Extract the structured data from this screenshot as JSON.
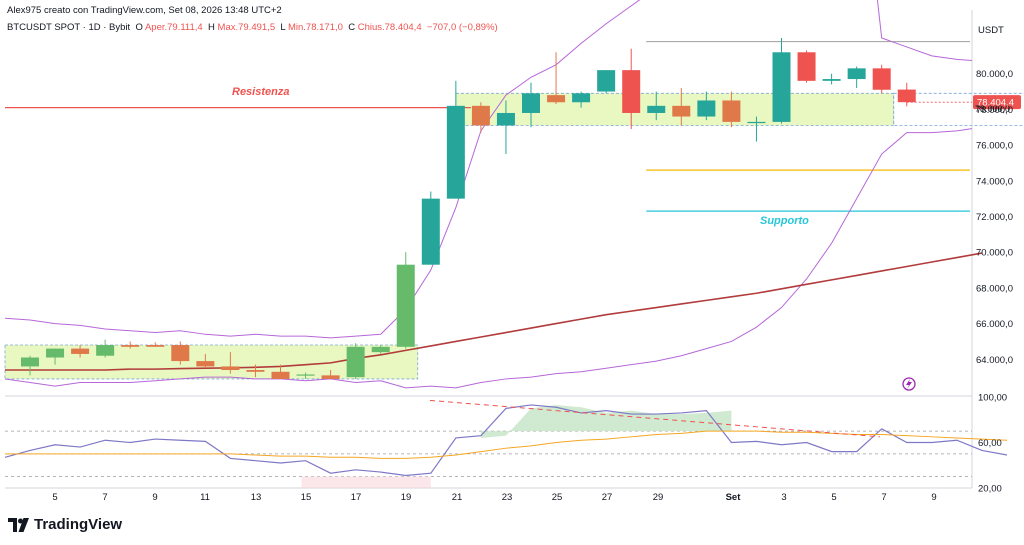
{
  "header": {
    "author_line": "Alex975 creato con TradingView.com, Set 08, 2026 13:48 UTC+2",
    "symbol_line": "BTCUSDT SPOT · 1D · Bybit",
    "o_label": "O",
    "o_value": "Aper.79.111,4",
    "h_label": "H",
    "h_value": "Max.79.491,5",
    "l_label": "L",
    "l_value": "Min.78.171,0",
    "c_label": "C",
    "c_value": "Chius.78.404,4",
    "change": "−707,0 (−0,89%)"
  },
  "footer": {
    "brand": "TradingView"
  },
  "colors": {
    "up": "#26a69a",
    "up_light": "#66bb6a",
    "down": "#ef5350",
    "down_light": "#e0794a",
    "resistance": "#ef5350",
    "support": "#26c6da",
    "yellow_line": "#f5b800",
    "ma": "#b23b3b",
    "bollinger": "#b667d8",
    "range_box": "#e8f8c0",
    "rsi": "#7e78c6",
    "rsi_ma": "#f5a623",
    "rsi_div": "#ef5350"
  },
  "chart_data": [
    {
      "type": "candlestick",
      "title": "BTCUSDT SPOT · 1D · Bybit",
      "currency": "USDT",
      "ylim": [
        62000,
        82000
      ],
      "y_ticks": [
        "80.000,0",
        "78.000,0",
        "76.000,0",
        "74.000,0",
        "72.000,0",
        "70.000,0",
        "68.000,0",
        "66.000,0",
        "64.000,0"
      ],
      "y_tick_values": [
        80000,
        78000,
        76000,
        74000,
        72000,
        70000,
        68000,
        66000,
        64000
      ],
      "x_ticks": [
        "5",
        "7",
        "9",
        "11",
        "13",
        "15",
        "17",
        "19",
        "21",
        "23",
        "25",
        "27",
        "29",
        "Set",
        "3",
        "5",
        "7",
        "9"
      ],
      "last_price": "78.404,4",
      "last_price_value": 78404.4,
      "candles": [
        {
          "o": 63600,
          "h": 64200,
          "l": 63100,
          "c": 64100
        },
        {
          "o": 64100,
          "h": 64600,
          "l": 63700,
          "c": 64600
        },
        {
          "o": 64600,
          "h": 64800,
          "l": 64100,
          "c": 64300
        },
        {
          "o": 64200,
          "h": 65100,
          "l": 64100,
          "c": 64800
        },
        {
          "o": 64800,
          "h": 65000,
          "l": 64600,
          "c": 64700
        },
        {
          "o": 64800,
          "h": 64950,
          "l": 64700,
          "c": 64700
        },
        {
          "o": 64800,
          "h": 65000,
          "l": 63700,
          "c": 63900
        },
        {
          "o": 63900,
          "h": 64300,
          "l": 63500,
          "c": 63600
        },
        {
          "o": 63600,
          "h": 64400,
          "l": 63200,
          "c": 63400
        },
        {
          "o": 63400,
          "h": 63700,
          "l": 63000,
          "c": 63300
        },
        {
          "o": 63300,
          "h": 63700,
          "l": 62900,
          "c": 62900
        },
        {
          "o": 63100,
          "h": 63250,
          "l": 62900,
          "c": 63150
        },
        {
          "o": 63100,
          "h": 63400,
          "l": 62900,
          "c": 62900
        },
        {
          "o": 63000,
          "h": 64900,
          "l": 62900,
          "c": 64700
        },
        {
          "o": 64400,
          "h": 64800,
          "l": 64300,
          "c": 64700
        },
        {
          "o": 64700,
          "h": 70000,
          "l": 64600,
          "c": 69300
        },
        {
          "o": 69300,
          "h": 73400,
          "l": 69300,
          "c": 73000
        },
        {
          "o": 73000,
          "h": 79600,
          "l": 73000,
          "c": 78200
        },
        {
          "o": 78200,
          "h": 78400,
          "l": 76700,
          "c": 77100
        },
        {
          "o": 77100,
          "h": 78500,
          "l": 75500,
          "c": 77800
        },
        {
          "o": 77800,
          "h": 79500,
          "l": 77000,
          "c": 78900
        },
        {
          "o": 78800,
          "h": 81200,
          "l": 78300,
          "c": 78400
        },
        {
          "o": 78400,
          "h": 79000,
          "l": 78100,
          "c": 78900
        },
        {
          "o": 79000,
          "h": 80200,
          "l": 78900,
          "c": 80200
        },
        {
          "o": 80200,
          "h": 81400,
          "l": 76900,
          "c": 77800
        },
        {
          "o": 77800,
          "h": 79000,
          "l": 77400,
          "c": 78200
        },
        {
          "o": 78200,
          "h": 79200,
          "l": 77100,
          "c": 77600
        },
        {
          "o": 77600,
          "h": 79000,
          "l": 77400,
          "c": 78500
        },
        {
          "o": 78500,
          "h": 79000,
          "l": 77000,
          "c": 77300
        },
        {
          "o": 77300,
          "h": 77600,
          "l": 76200,
          "c": 77300
        },
        {
          "o": 77300,
          "h": 82000,
          "l": 77200,
          "c": 81200
        },
        {
          "o": 81200,
          "h": 81300,
          "l": 79500,
          "c": 79600
        },
        {
          "o": 79600,
          "h": 80000,
          "l": 79400,
          "c": 79700
        },
        {
          "o": 79700,
          "h": 80400,
          "l": 79200,
          "c": 80300
        },
        {
          "o": 80300,
          "h": 80500,
          "l": 78900,
          "c": 79100
        },
        {
          "o": 79111.4,
          "h": 79491.5,
          "l": 78171.0,
          "c": 78404.4
        }
      ],
      "moving_average": [
        63400,
        63400,
        63400,
        63400,
        63400,
        63450,
        63450,
        63480,
        63500,
        63520,
        63550,
        63600,
        63700,
        63800,
        64050,
        64250,
        64500,
        64750,
        65000,
        65250,
        65500,
        65750,
        66000,
        66250,
        66500,
        66700,
        66900,
        67100,
        67300,
        67500,
        67700,
        67950,
        68200,
        68450,
        68700,
        68950,
        69200,
        69450,
        69700,
        69950
      ],
      "bollinger_upper": [
        66300,
        66200,
        66000,
        65900,
        65700,
        65600,
        65500,
        65600,
        65400,
        65300,
        65400,
        65300,
        65300,
        65200,
        65300,
        65400,
        66800,
        69000,
        72500,
        76800,
        78800,
        79800,
        80500,
        81700,
        82800,
        83800,
        84800,
        86000,
        87200,
        88400,
        89800,
        91200,
        92400,
        93700,
        94500,
        82000,
        81500,
        81000,
        80800,
        80700,
        80800,
        80800
      ],
      "bollinger_lower": [
        62900,
        62700,
        62500,
        62700,
        62700,
        62700,
        62800,
        62900,
        63000,
        63000,
        62900,
        62900,
        62800,
        62900,
        62700,
        62800,
        62400,
        62500,
        62400,
        62700,
        62900,
        63000,
        63200,
        63300,
        63500,
        63700,
        63900,
        64200,
        64600,
        65000,
        65800,
        66900,
        68500,
        70500,
        73000,
        75500,
        76700,
        76700,
        76800,
        77000,
        76800,
        76800
      ],
      "zones": [
        {
          "name": "accumulation",
          "from_index": 0,
          "to_index": 15,
          "low": 62900,
          "high": 64800
        },
        {
          "name": "range",
          "from_index": 18,
          "to_index": 34,
          "low": 77100,
          "high": 78900
        }
      ],
      "levels": [
        {
          "label": "Resistenza",
          "value": 78100,
          "color": "#ef5350"
        },
        {
          "label": "",
          "value": 74600,
          "color": "#f5b800"
        },
        {
          "label": "Supporto",
          "value": 72300,
          "color": "#26c6da"
        },
        {
          "label": "",
          "value": 81800,
          "color": "#9e9e9e"
        }
      ]
    },
    {
      "type": "line",
      "name": "RSI",
      "ylim": [
        20,
        100
      ],
      "y_ticks": [
        "100,00",
        "60,00",
        "20,00"
      ],
      "y_tick_values": [
        100,
        60,
        20
      ],
      "bands": [
        70,
        50,
        30
      ],
      "rsi": [
        47,
        53,
        58,
        56,
        62,
        60,
        63,
        62,
        61,
        46,
        44,
        42,
        44,
        33,
        36,
        34,
        31,
        33,
        64,
        66,
        90,
        93,
        91,
        86,
        88,
        85,
        85,
        86,
        88,
        60,
        61,
        58,
        60,
        52,
        52,
        72,
        60,
        60,
        62,
        53,
        49
      ],
      "rsi_ma": [
        50,
        50,
        50,
        50,
        50,
        50,
        50,
        50,
        50,
        50,
        49,
        48,
        48,
        47,
        47,
        46,
        46,
        47,
        49,
        52,
        55,
        57,
        60,
        62,
        63,
        65,
        67,
        68,
        70,
        70,
        70,
        69,
        69,
        68,
        67,
        67,
        66,
        65,
        64,
        63,
        62
      ]
    }
  ],
  "annotations": {
    "resistance_label": "Resistenza",
    "support_label": "Supporto",
    "price_axis_unit": "USDT",
    "price_in_box": "78.000,0"
  }
}
